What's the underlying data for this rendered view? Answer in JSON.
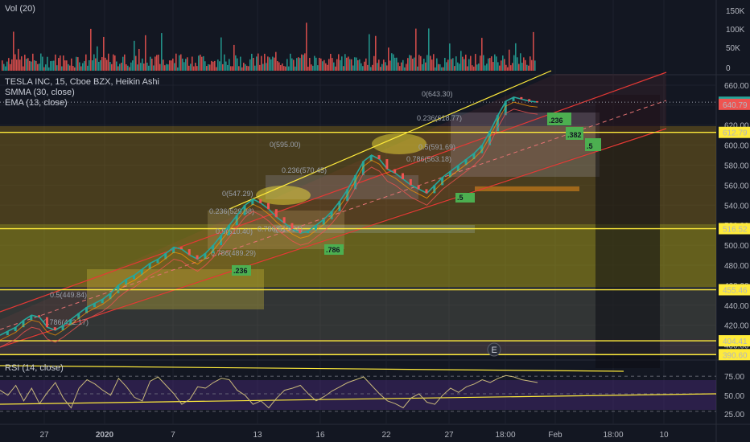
{
  "volume_pane": {
    "title": "Vol (20)",
    "axis_ticks": [
      "150K",
      "100K",
      "50K",
      "0"
    ]
  },
  "price_pane": {
    "legend": [
      "TESLA INC, 15, Cboe BZX, Heikin Ashi",
      "SMMA (30, close)",
      "EMA (13, close)"
    ],
    "price_tags": [
      {
        "value": "642.96",
        "color": "#26a69a"
      },
      {
        "value": "640.79",
        "color": "#ef5350"
      },
      {
        "value": "612.79",
        "color": "#ffeb3b"
      },
      {
        "value": "516.52",
        "color": "#ffeb3b"
      },
      {
        "value": "455.46",
        "color": "#ffeb3b"
      },
      {
        "value": "404.41",
        "color": "#ffeb3b"
      },
      {
        "value": "390.60",
        "color": "#ffeb3b"
      }
    ],
    "fib_labels": [
      "0(643.30)",
      "0.236(618.77)",
      "0.5(591.69)",
      "0.786(563.18)",
      "0(595.00)",
      "0.236(570.45)",
      "0(547.29)",
      "0.236(529.88)",
      "0.5(510.40)",
      "0.786(513.24)",
      "0.786(489.29)",
      "0.5(449.84)",
      "0.786(422.17)"
    ],
    "fib_tags": [
      ".236",
      ".382",
      ".5",
      ".786",
      ".236",
      ".5"
    ],
    "event_marker": "E",
    "accent_green": "#4caf50",
    "accent_yellow": "#ffeb3b"
  },
  "rsi_pane": {
    "title": "RSI (14, close)",
    "axis_ticks": [
      "75.00",
      "50.00",
      "25.00"
    ]
  },
  "time_axis": [
    "27",
    "2020",
    "7",
    "13",
    "16",
    "22",
    "27",
    "18:00",
    "Feb",
    "18:00",
    "10"
  ],
  "chart_data": {
    "type": "line",
    "title": "TESLA INC, 15, Cboe BZX, Heikin Ashi",
    "y_price_ticks": [
      660,
      640,
      620,
      600,
      580,
      560,
      540,
      520,
      500,
      480,
      460,
      440,
      420,
      400
    ],
    "price_range": [
      390,
      668
    ],
    "levels": [
      612.79,
      516.52,
      455.46,
      404.41,
      390.6
    ],
    "series": [
      {
        "name": "TESLA INC, 15, Cboe BZX, Heikin Ashi",
        "color": "#26a69a",
        "values": [
          410,
          414,
          418,
          425,
          430,
          428,
          418,
          415,
          420,
          426,
          432,
          438,
          442,
          446,
          452,
          460,
          466,
          470,
          476,
          482,
          486,
          492,
          498,
          496,
          490,
          486,
          492,
          500,
          510,
          520,
          530,
          540,
          546,
          542,
          536,
          528,
          522,
          516,
          512,
          514,
          520,
          526,
          534,
          544,
          556,
          570,
          584,
          590,
          586,
          576,
          572,
          566,
          560,
          556,
          552,
          560,
          568,
          574,
          580,
          586,
          592,
          600,
          614,
          630,
          644,
          648,
          646,
          644,
          643
        ]
      },
      {
        "name": "SMMA (30, close)",
        "color": "#ef5350",
        "values": []
      },
      {
        "name": "EMA (13, close)",
        "color": "#ff9800",
        "values": []
      }
    ],
    "rsi_range": [
      10,
      90
    ],
    "rsi_levels": [
      70,
      30
    ],
    "rsi_values": [
      55,
      48,
      62,
      40,
      58,
      36,
      52,
      66,
      44,
      30,
      58,
      70,
      64,
      55,
      48,
      72,
      60,
      45,
      40,
      68,
      74,
      62,
      50,
      35,
      42,
      60,
      58,
      66,
      72,
      70,
      55,
      48,
      35,
      40,
      30,
      44,
      55,
      58,
      62,
      50,
      40,
      46,
      54,
      60,
      66,
      70,
      74,
      62,
      50,
      40,
      36,
      30,
      44,
      50,
      38,
      35,
      48,
      58,
      52,
      60,
      64,
      70,
      66,
      72,
      76,
      74,
      70,
      68,
      66
    ]
  }
}
